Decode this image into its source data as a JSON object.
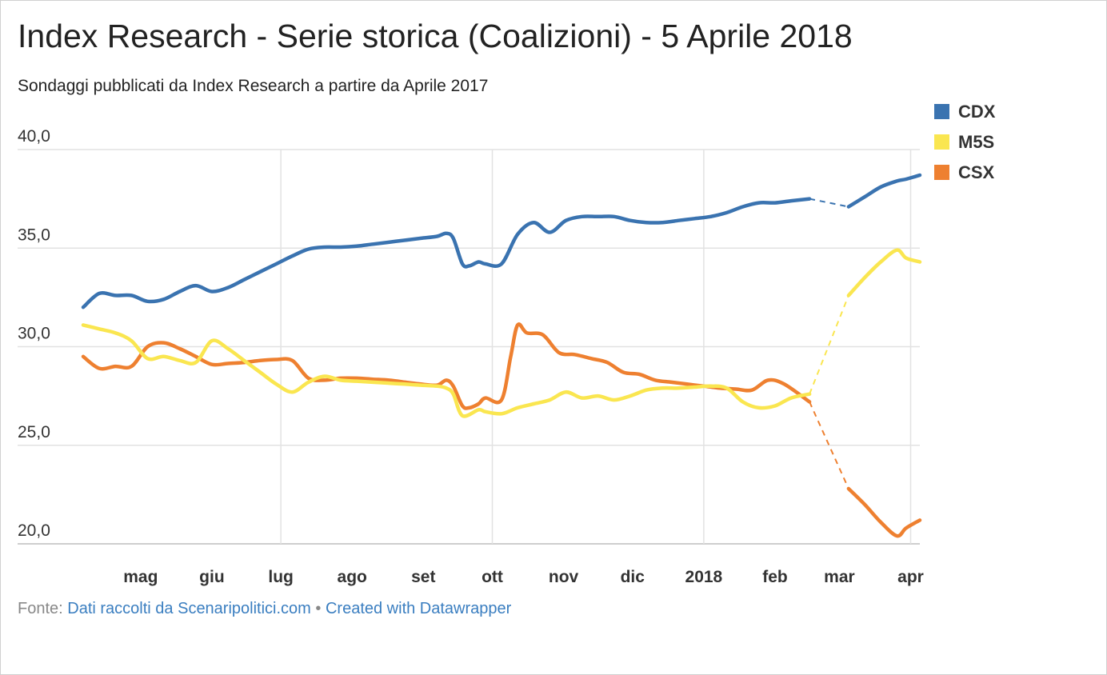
{
  "title": "Index Research - Serie storica (Coalizioni) - 5 Aprile 2018",
  "subtitle": "Sondaggi pubblicati da Index Research a partire da Aprile 2017",
  "footer": {
    "prefix": "Fonte:",
    "source": "Dati raccolti da Scenaripolitici.com",
    "separator": "•",
    "credit": "Created with Datawrapper"
  },
  "chart_data": {
    "type": "line",
    "ylim": [
      20,
      40
    ],
    "yticks": [
      {
        "value": 40,
        "label": "40,0"
      },
      {
        "value": 35,
        "label": "35,0"
      },
      {
        "value": 30,
        "label": "30,0"
      },
      {
        "value": 25,
        "label": "25,0"
      },
      {
        "value": 20,
        "label": "20,0"
      }
    ],
    "xlim": [
      "2017-04-06",
      "2018-04-05"
    ],
    "xticks": [
      {
        "date": "2017-05-01",
        "label": "mag",
        "bold": true,
        "gridline": false
      },
      {
        "date": "2017-06-01",
        "label": "giu",
        "bold": true,
        "gridline": false
      },
      {
        "date": "2017-07-01",
        "label": "lug",
        "bold": true,
        "gridline": true
      },
      {
        "date": "2017-08-01",
        "label": "ago",
        "bold": true,
        "gridline": false
      },
      {
        "date": "2017-09-01",
        "label": "set",
        "bold": true,
        "gridline": false
      },
      {
        "date": "2017-10-01",
        "label": "ott",
        "bold": true,
        "gridline": true
      },
      {
        "date": "2017-11-01",
        "label": "nov",
        "bold": true,
        "gridline": false
      },
      {
        "date": "2017-12-01",
        "label": "dic",
        "bold": true,
        "gridline": false
      },
      {
        "date": "2018-01-01",
        "label": "2018",
        "bold": true,
        "gridline": true
      },
      {
        "date": "2018-02-01",
        "label": "feb",
        "bold": true,
        "gridline": false
      },
      {
        "date": "2018-03-01",
        "label": "mar",
        "bold": true,
        "gridline": false
      },
      {
        "date": "2018-04-01",
        "label": "apr",
        "bold": true,
        "gridline": true
      }
    ],
    "grid": true,
    "legend_position": "top-right",
    "gap_segment": {
      "from": "2018-02-16",
      "to": "2018-03-05",
      "style": "dashed"
    },
    "series": [
      {
        "name": "CDX",
        "color": "#3a73b0",
        "points": [
          [
            "2017-04-06",
            32.0
          ],
          [
            "2017-04-13",
            32.7
          ],
          [
            "2017-04-20",
            32.6
          ],
          [
            "2017-04-27",
            32.6
          ],
          [
            "2017-05-04",
            32.3
          ],
          [
            "2017-05-11",
            32.4
          ],
          [
            "2017-05-18",
            32.8
          ],
          [
            "2017-05-25",
            33.1
          ],
          [
            "2017-06-01",
            32.8
          ],
          [
            "2017-06-08",
            33.0
          ],
          [
            "2017-06-15",
            33.4
          ],
          [
            "2017-06-22",
            33.8
          ],
          [
            "2017-06-29",
            34.2
          ],
          [
            "2017-07-06",
            34.6
          ],
          [
            "2017-07-13",
            34.95
          ],
          [
            "2017-07-20",
            35.05
          ],
          [
            "2017-07-27",
            35.05
          ],
          [
            "2017-08-03",
            35.1
          ],
          [
            "2017-08-10",
            35.2
          ],
          [
            "2017-08-17",
            35.3
          ],
          [
            "2017-08-24",
            35.4
          ],
          [
            "2017-08-31",
            35.5
          ],
          [
            "2017-09-07",
            35.6
          ],
          [
            "2017-09-11",
            35.75
          ],
          [
            "2017-09-14",
            35.5
          ],
          [
            "2017-09-18",
            34.2
          ],
          [
            "2017-09-21",
            34.1
          ],
          [
            "2017-09-25",
            34.3
          ],
          [
            "2017-09-28",
            34.2
          ],
          [
            "2017-10-05",
            34.2
          ],
          [
            "2017-10-12",
            35.7
          ],
          [
            "2017-10-19",
            36.3
          ],
          [
            "2017-10-26",
            35.8
          ],
          [
            "2017-11-02",
            36.4
          ],
          [
            "2017-11-09",
            36.6
          ],
          [
            "2017-11-16",
            36.6
          ],
          [
            "2017-11-23",
            36.6
          ],
          [
            "2017-11-30",
            36.4
          ],
          [
            "2017-12-07",
            36.3
          ],
          [
            "2017-12-14",
            36.3
          ],
          [
            "2017-12-21",
            36.4
          ],
          [
            "2017-12-28",
            36.5
          ],
          [
            "2018-01-04",
            36.6
          ],
          [
            "2018-01-11",
            36.8
          ],
          [
            "2018-01-18",
            37.1
          ],
          [
            "2018-01-25",
            37.3
          ],
          [
            "2018-02-01",
            37.3
          ],
          [
            "2018-02-08",
            37.4
          ],
          [
            "2018-02-16",
            37.5
          ],
          [
            "2018-03-05",
            37.1
          ],
          [
            "2018-03-12",
            37.6
          ],
          [
            "2018-03-19",
            38.1
          ],
          [
            "2018-03-26",
            38.4
          ],
          [
            "2018-03-30",
            38.5
          ],
          [
            "2018-04-05",
            38.7
          ]
        ]
      },
      {
        "name": "M5S",
        "color": "#fae650",
        "points": [
          [
            "2017-04-06",
            31.1
          ],
          [
            "2017-04-13",
            30.9
          ],
          [
            "2017-04-20",
            30.7
          ],
          [
            "2017-04-27",
            30.3
          ],
          [
            "2017-05-04",
            29.4
          ],
          [
            "2017-05-11",
            29.5
          ],
          [
            "2017-05-18",
            29.3
          ],
          [
            "2017-05-25",
            29.2
          ],
          [
            "2017-06-01",
            30.3
          ],
          [
            "2017-06-08",
            29.9
          ],
          [
            "2017-06-15",
            29.3
          ],
          [
            "2017-06-22",
            28.7
          ],
          [
            "2017-06-29",
            28.1
          ],
          [
            "2017-07-06",
            27.7
          ],
          [
            "2017-07-13",
            28.2
          ],
          [
            "2017-07-20",
            28.5
          ],
          [
            "2017-07-27",
            28.3
          ],
          [
            "2017-08-03",
            28.25
          ],
          [
            "2017-08-10",
            28.2
          ],
          [
            "2017-08-17",
            28.15
          ],
          [
            "2017-08-24",
            28.1
          ],
          [
            "2017-08-31",
            28.05
          ],
          [
            "2017-09-07",
            28.0
          ],
          [
            "2017-09-11",
            27.9
          ],
          [
            "2017-09-14",
            27.6
          ],
          [
            "2017-09-18",
            26.5
          ],
          [
            "2017-09-25",
            26.8
          ],
          [
            "2017-09-28",
            26.7
          ],
          [
            "2017-10-05",
            26.6
          ],
          [
            "2017-10-12",
            26.9
          ],
          [
            "2017-10-19",
            27.1
          ],
          [
            "2017-10-26",
            27.3
          ],
          [
            "2017-11-02",
            27.7
          ],
          [
            "2017-11-09",
            27.4
          ],
          [
            "2017-11-16",
            27.5
          ],
          [
            "2017-11-23",
            27.3
          ],
          [
            "2017-11-30",
            27.5
          ],
          [
            "2017-12-07",
            27.8
          ],
          [
            "2017-12-14",
            27.9
          ],
          [
            "2017-12-21",
            27.9
          ],
          [
            "2017-12-28",
            27.95
          ],
          [
            "2018-01-04",
            28.0
          ],
          [
            "2018-01-11",
            27.9
          ],
          [
            "2018-01-18",
            27.2
          ],
          [
            "2018-01-25",
            26.9
          ],
          [
            "2018-02-01",
            27.0
          ],
          [
            "2018-02-08",
            27.4
          ],
          [
            "2018-02-16",
            27.6
          ],
          [
            "2018-03-05",
            32.6
          ],
          [
            "2018-03-12",
            33.5
          ],
          [
            "2018-03-19",
            34.3
          ],
          [
            "2018-03-26",
            34.9
          ],
          [
            "2018-03-30",
            34.5
          ],
          [
            "2018-04-05",
            34.3
          ]
        ]
      },
      {
        "name": "CSX",
        "color": "#ee8030",
        "points": [
          [
            "2017-04-06",
            29.5
          ],
          [
            "2017-04-13",
            28.9
          ],
          [
            "2017-04-20",
            29.0
          ],
          [
            "2017-04-27",
            29.0
          ],
          [
            "2017-05-04",
            30.0
          ],
          [
            "2017-05-11",
            30.2
          ],
          [
            "2017-05-18",
            29.9
          ],
          [
            "2017-05-25",
            29.5
          ],
          [
            "2017-06-01",
            29.1
          ],
          [
            "2017-06-08",
            29.15
          ],
          [
            "2017-06-15",
            29.2
          ],
          [
            "2017-06-22",
            29.3
          ],
          [
            "2017-06-29",
            29.35
          ],
          [
            "2017-07-06",
            29.3
          ],
          [
            "2017-07-13",
            28.4
          ],
          [
            "2017-07-20",
            28.3
          ],
          [
            "2017-07-27",
            28.4
          ],
          [
            "2017-08-03",
            28.4
          ],
          [
            "2017-08-10",
            28.35
          ],
          [
            "2017-08-17",
            28.3
          ],
          [
            "2017-08-24",
            28.2
          ],
          [
            "2017-08-31",
            28.1
          ],
          [
            "2017-09-07",
            28.05
          ],
          [
            "2017-09-11",
            28.3
          ],
          [
            "2017-09-14",
            28.0
          ],
          [
            "2017-09-18",
            27.0
          ],
          [
            "2017-09-21",
            26.9
          ],
          [
            "2017-09-25",
            27.1
          ],
          [
            "2017-09-28",
            27.4
          ],
          [
            "2017-10-05",
            27.3
          ],
          [
            "2017-10-09",
            29.5
          ],
          [
            "2017-10-12",
            31.1
          ],
          [
            "2017-10-16",
            30.7
          ],
          [
            "2017-10-23",
            30.6
          ],
          [
            "2017-10-30",
            29.7
          ],
          [
            "2017-11-06",
            29.6
          ],
          [
            "2017-11-13",
            29.4
          ],
          [
            "2017-11-20",
            29.2
          ],
          [
            "2017-11-27",
            28.7
          ],
          [
            "2017-12-04",
            28.6
          ],
          [
            "2017-12-11",
            28.3
          ],
          [
            "2017-12-18",
            28.2
          ],
          [
            "2017-12-25",
            28.1
          ],
          [
            "2018-01-01",
            28.0
          ],
          [
            "2018-01-08",
            27.9
          ],
          [
            "2018-01-15",
            27.85
          ],
          [
            "2018-01-22",
            27.8
          ],
          [
            "2018-01-29",
            28.3
          ],
          [
            "2018-02-05",
            28.1
          ],
          [
            "2018-02-16",
            27.2
          ],
          [
            "2018-03-05",
            22.8
          ],
          [
            "2018-03-12",
            22.0
          ],
          [
            "2018-03-19",
            21.1
          ],
          [
            "2018-03-26",
            20.4
          ],
          [
            "2018-03-30",
            20.8
          ],
          [
            "2018-04-05",
            21.2
          ]
        ]
      }
    ]
  }
}
